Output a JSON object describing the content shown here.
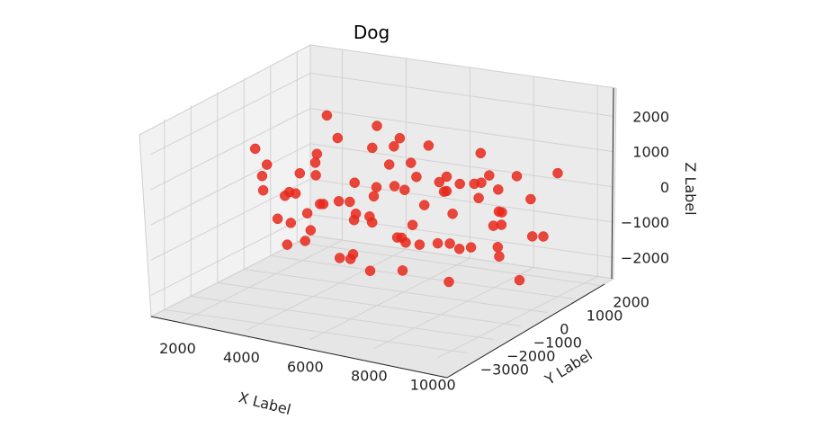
{
  "chart_data": {
    "type": "scatter",
    "projection": "3d",
    "title": "Dog",
    "xlabel": "X Label",
    "ylabel": "Y Label",
    "zlabel": "Z Label",
    "marker_color": "#e8281c",
    "xlim": [
      1000,
      10500
    ],
    "ylim": [
      -3500,
      2500
    ],
    "zlim": [
      -2600,
      2800
    ],
    "grid": true,
    "x_ticks": [
      "2000",
      "4000",
      "6000",
      "8000",
      "10000"
    ],
    "y_ticks": [
      "−3000",
      "−2000",
      "−1000",
      "0",
      "1000",
      "2000"
    ],
    "z_ticks": [
      "−2000",
      "−1000",
      "0",
      "1000",
      "2000"
    ],
    "points_note": "",
    "points": [
      [
        2100,
        -900,
        1300
      ],
      [
        2300,
        -700,
        800
      ],
      [
        2600,
        -1200,
        300
      ],
      [
        2200,
        100,
        -400
      ],
      [
        2800,
        -400,
        -900
      ],
      [
        3100,
        600,
        1800
      ],
      [
        3300,
        -1500,
        -300
      ],
      [
        3500,
        -300,
        500
      ],
      [
        3700,
        900,
        -1200
      ],
      [
        3900,
        -800,
        1100
      ],
      [
        4100,
        -2100,
        -700
      ],
      [
        4300,
        200,
        200
      ],
      [
        4500,
        -600,
        -1600
      ],
      [
        4700,
        1200,
        900
      ],
      [
        4900,
        -1700,
        400
      ],
      [
        5100,
        -200,
        -500
      ],
      [
        5300,
        700,
        1400
      ],
      [
        5500,
        -1300,
        -1100
      ],
      [
        5700,
        400,
        100
      ],
      [
        5900,
        -900,
        700
      ],
      [
        6100,
        1500,
        -300
      ],
      [
        6300,
        -400,
        -1800
      ],
      [
        6500,
        -2400,
        600
      ],
      [
        6700,
        100,
        1600
      ],
      [
        6900,
        -1000,
        -700
      ],
      [
        7100,
        800,
        300
      ],
      [
        7300,
        -1800,
        -200
      ],
      [
        7500,
        300,
        -1300
      ],
      [
        7700,
        -700,
        1000
      ],
      [
        7900,
        1100,
        -900
      ],
      [
        8100,
        -2600,
        200
      ],
      [
        8300,
        -100,
        800
      ],
      [
        8500,
        600,
        -1500
      ],
      [
        8700,
        -1400,
        500
      ],
      [
        8900,
        200,
        -400
      ],
      [
        9100,
        -800,
        1200
      ],
      [
        9300,
        1300,
        -1100
      ],
      [
        9500,
        -500,
        300
      ],
      [
        9700,
        400,
        -700
      ],
      [
        9900,
        -1100,
        600
      ],
      [
        2500,
        300,
        200
      ],
      [
        2900,
        -1600,
        900
      ],
      [
        3400,
        1100,
        -800
      ],
      [
        3800,
        -500,
        -200
      ],
      [
        4200,
        -1100,
        1500
      ],
      [
        4600,
        500,
        -1000
      ],
      [
        5000,
        -2300,
        -100
      ],
      [
        5400,
        1000,
        600
      ],
      [
        5800,
        -300,
        1100
      ],
      [
        6200,
        -1500,
        -1400
      ],
      [
        6600,
        900,
        400
      ],
      [
        7000,
        -600,
        -900
      ],
      [
        7400,
        -1200,
        1300
      ],
      [
        7800,
        1400,
        0
      ],
      [
        8200,
        -900,
        -600
      ],
      [
        8600,
        100,
        1000
      ],
      [
        9000,
        -1900,
        -1200
      ],
      [
        9400,
        700,
        200
      ],
      [
        9800,
        -200,
        -1700
      ],
      [
        10000,
        1000,
        900
      ],
      [
        3000,
        -100,
        -1500
      ],
      [
        3600,
        400,
        1300
      ],
      [
        4000,
        -1900,
        700
      ],
      [
        4400,
        800,
        -400
      ],
      [
        4800,
        -1000,
        200
      ],
      [
        5200,
        1300,
        -1300
      ],
      [
        5600,
        -700,
        1700
      ],
      [
        6000,
        -2000,
        -900
      ],
      [
        6400,
        300,
        -200
      ],
      [
        6800,
        -1300,
        1000
      ],
      [
        7200,
        1100,
        -1600
      ],
      [
        7600,
        -400,
        600
      ],
      [
        8000,
        500,
        1400
      ],
      [
        8400,
        -1600,
        -300
      ],
      [
        8800,
        900,
        700
      ],
      [
        9200,
        -300,
        -800
      ],
      [
        9600,
        -1500,
        1100
      ],
      [
        2400,
        700,
        -1100
      ],
      [
        3200,
        -700,
        100
      ],
      [
        5000,
        200,
        1900
      ]
    ]
  }
}
